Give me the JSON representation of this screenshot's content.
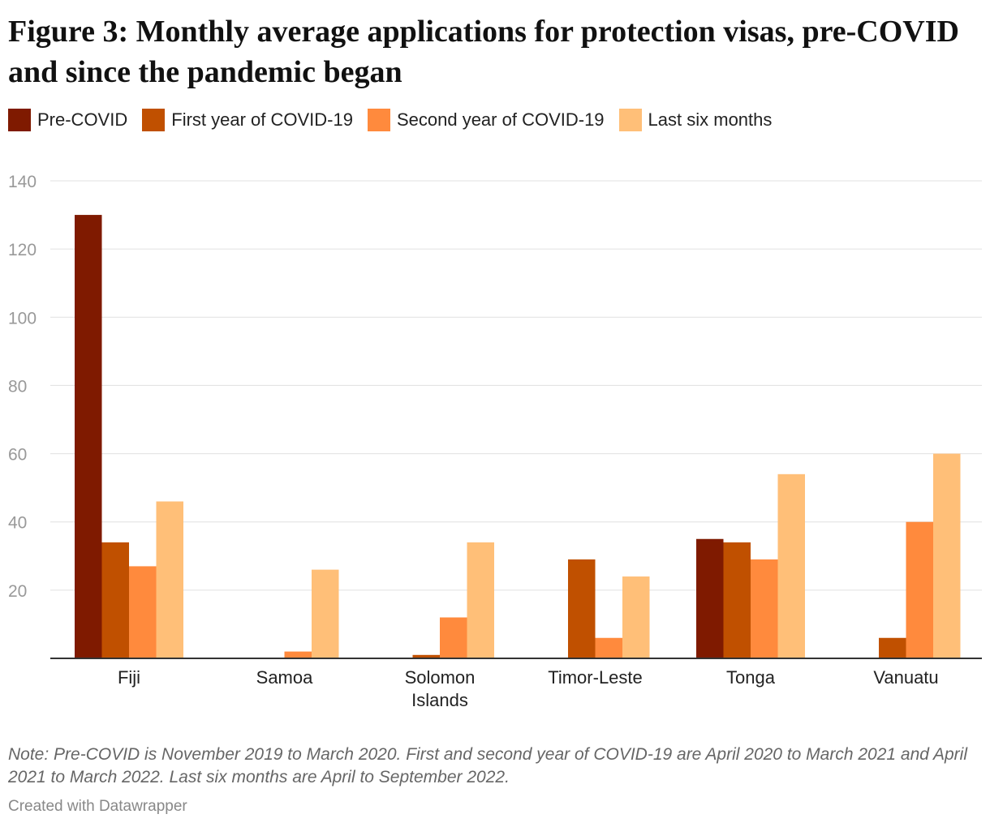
{
  "title": "Figure 3: Monthly average applications for protection visas, pre-COVID and since the pandemic began",
  "note": "Note: Pre-COVID is November 2019 to March 2020. First and second year of COVID-19 are April 2020 to March 2021 and April 2021 to March 2022. Last six months are April to September 2022.",
  "credit": "Created with Datawrapper",
  "colors": {
    "grid": "#e0e0e0",
    "axis": "#333333"
  },
  "chart_data": {
    "type": "bar",
    "title": "Figure 3: Monthly average applications for protection visas, pre-COVID and since the pandemic began",
    "xlabel": "",
    "ylabel": "",
    "ylim": [
      0,
      140
    ],
    "yticks": [
      20,
      40,
      60,
      80,
      100,
      120,
      140
    ],
    "grid": true,
    "legend_position": "top-left",
    "categories": [
      "Fiji",
      "Samoa",
      "Solomon Islands",
      "Timor-Leste",
      "Tonga",
      "Vanuatu"
    ],
    "series": [
      {
        "name": "Pre-COVID",
        "color": "#7f1a00",
        "values": [
          130,
          0,
          0,
          0,
          35,
          0
        ]
      },
      {
        "name": "First year of COVID-19",
        "color": "#c05000",
        "values": [
          34,
          0,
          1,
          29,
          34,
          6
        ]
      },
      {
        "name": "Second year of COVID-19",
        "color": "#ff8a3d",
        "values": [
          27,
          2,
          12,
          6,
          29,
          40
        ]
      },
      {
        "name": "Last six months",
        "color": "#ffbf78",
        "values": [
          46,
          26,
          34,
          24,
          54,
          60
        ]
      }
    ]
  }
}
